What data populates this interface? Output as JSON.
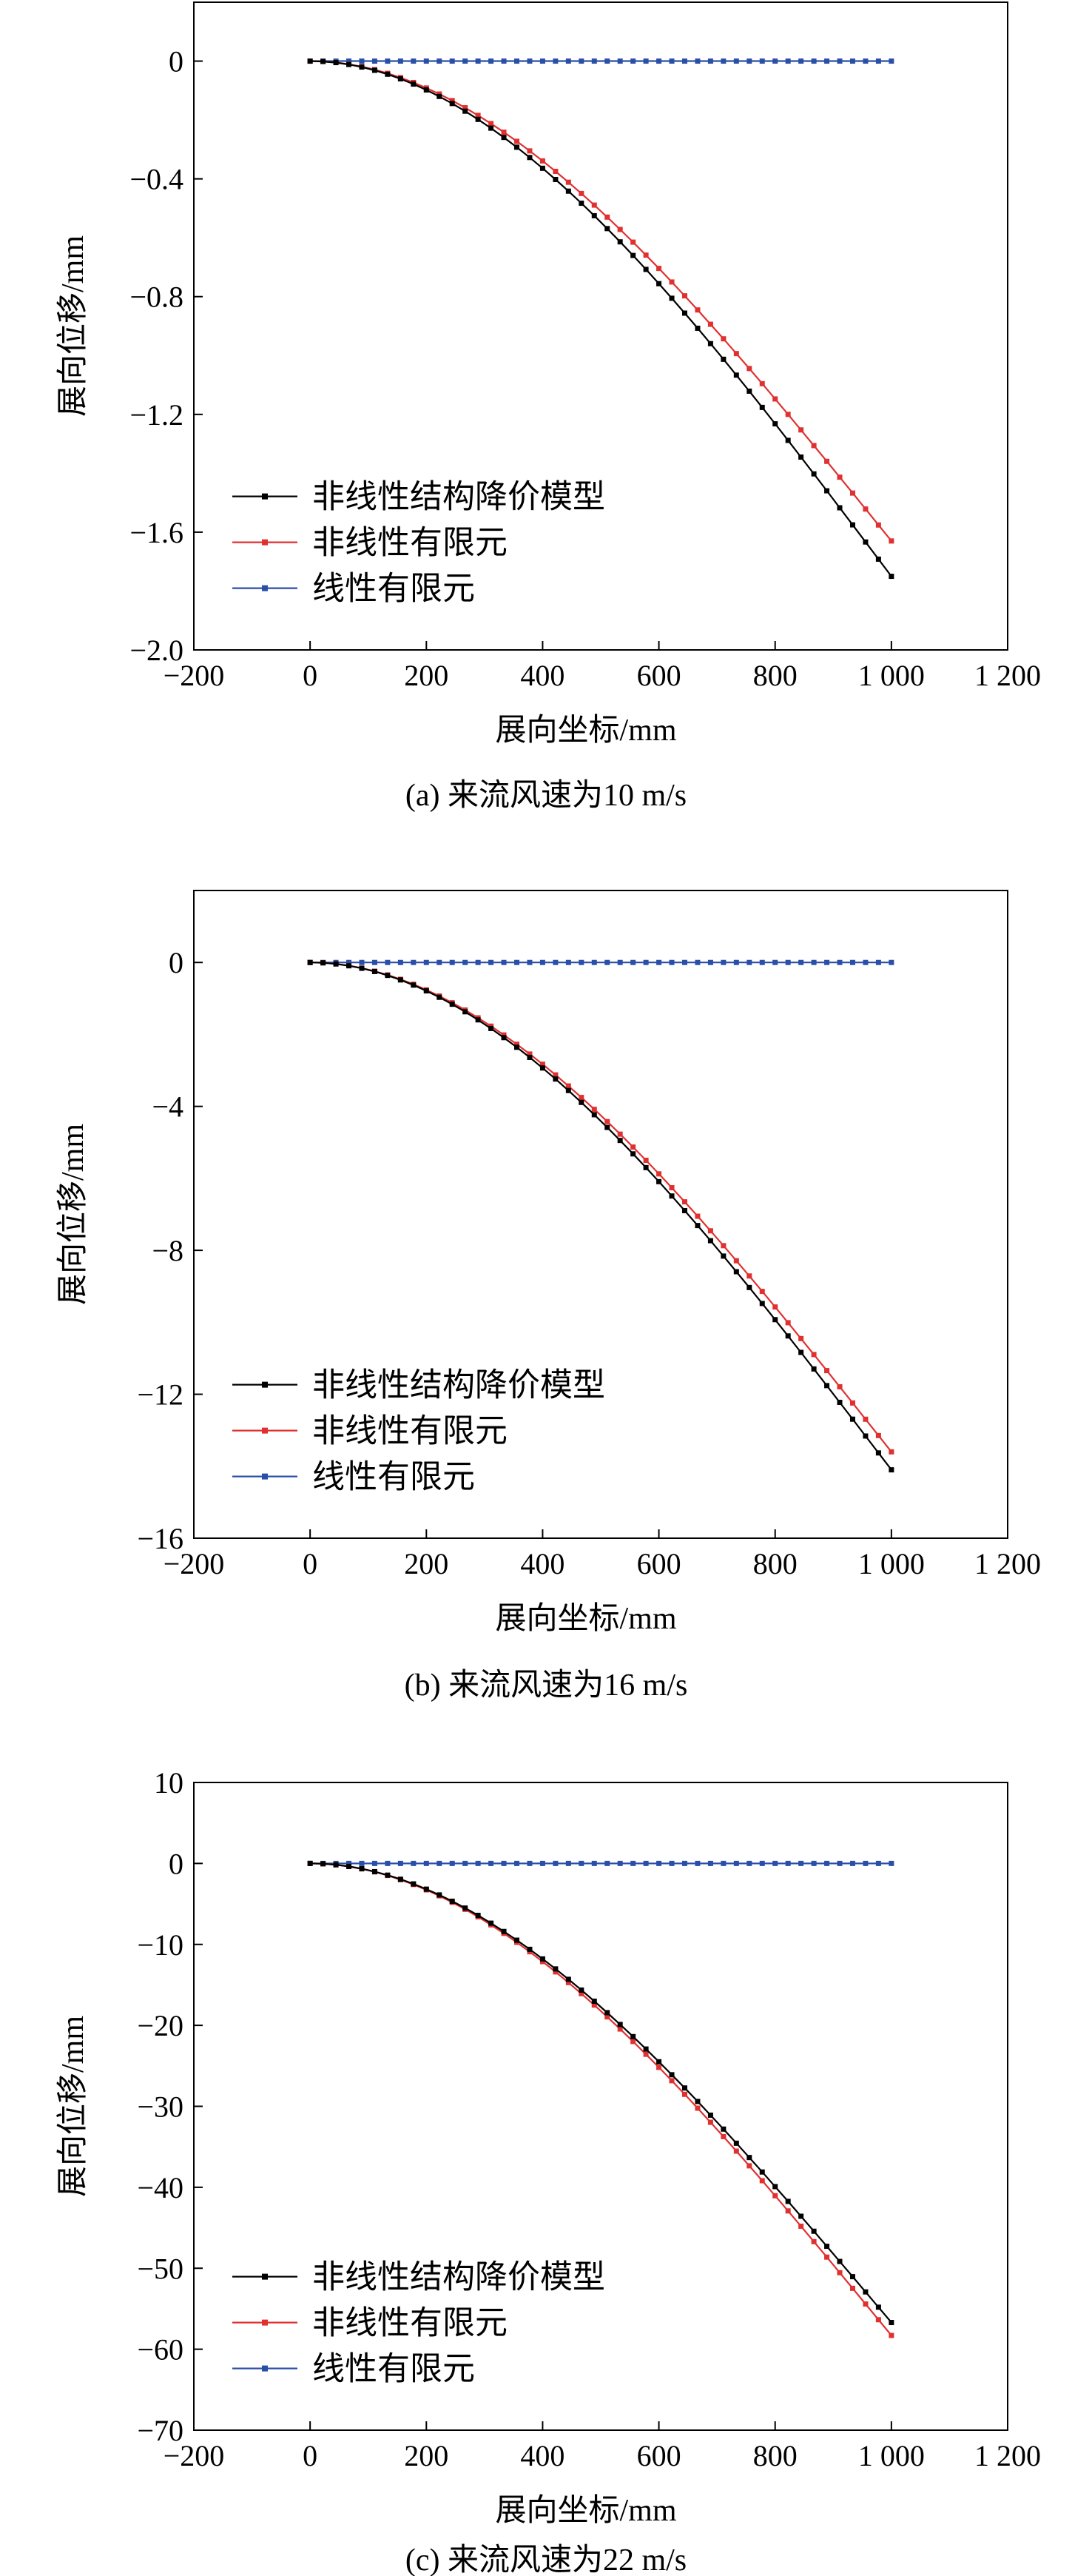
{
  "chart_data": [
    {
      "type": "line",
      "caption": "(a) 来流风速为10 m/s",
      "xlabel": "展向坐标/mm",
      "ylabel": "展向位移/mm",
      "xlim": [
        -200,
        1200
      ],
      "ylim": [
        -2.0,
        0.2
      ],
      "xticks": [
        -200,
        0,
        200,
        400,
        600,
        800,
        1000,
        1200
      ],
      "xtick_labels": [
        "−200",
        "0",
        "200",
        "400",
        "600",
        "800",
        "1 000",
        "1 200"
      ],
      "yticks": [
        0,
        -0.4,
        -0.8,
        -1.2,
        -1.6,
        -2.0
      ],
      "ytick_labels": [
        "0",
        "−0.4",
        "−0.8",
        "−1.2",
        "−1.6",
        "−2.0"
      ],
      "legend_position": "lower-left",
      "tip_values": [
        -1.75,
        -1.63,
        0
      ],
      "series": [
        {
          "name": "非线性结构降价模型",
          "color": "#000000"
        },
        {
          "name": "非线性有限元",
          "color": "#e03030"
        },
        {
          "name": "线性有限元",
          "color": "#2a4fa8"
        }
      ]
    },
    {
      "type": "line",
      "caption": "(b) 来流风速为16 m/s",
      "xlabel": "展向坐标/mm",
      "ylabel": "展向位移/mm",
      "xlim": [
        -200,
        1200
      ],
      "ylim": [
        -16,
        2
      ],
      "xticks": [
        -200,
        0,
        200,
        400,
        600,
        800,
        1000,
        1200
      ],
      "xtick_labels": [
        "−200",
        "0",
        "200",
        "400",
        "600",
        "800",
        "1 000",
        "1 200"
      ],
      "yticks": [
        0,
        -4,
        -8,
        -12,
        -16
      ],
      "ytick_labels": [
        "0",
        "−4",
        "−8",
        "−12",
        "−16"
      ],
      "legend_position": "lower-left",
      "tip_values": [
        -14.1,
        -13.6,
        0
      ],
      "series": [
        {
          "name": "非线性结构降价模型",
          "color": "#000000"
        },
        {
          "name": "非线性有限元",
          "color": "#e03030"
        },
        {
          "name": "线性有限元",
          "color": "#2a4fa8"
        }
      ]
    },
    {
      "type": "line",
      "caption": "(c) 来流风速为22 m/s",
      "xlabel": "展向坐标/mm",
      "ylabel": "展向位移/mm",
      "xlim": [
        -200,
        1200
      ],
      "ylim": [
        -70,
        10
      ],
      "xticks": [
        -200,
        0,
        200,
        400,
        600,
        800,
        1000,
        1200
      ],
      "xtick_labels": [
        "−200",
        "0",
        "200",
        "400",
        "600",
        "800",
        "1 000",
        "1 200"
      ],
      "yticks": [
        10,
        0,
        -10,
        -20,
        -30,
        -40,
        -50,
        -60,
        -70
      ],
      "ytick_labels": [
        "10",
        "0",
        "−10",
        "−20",
        "−30",
        "−40",
        "−50",
        "−60",
        "−70"
      ],
      "legend_position": "lower-left",
      "tip_values": [
        -56.7,
        -58.3,
        0
      ],
      "series": [
        {
          "name": "非线性结构降价模型",
          "color": "#000000"
        },
        {
          "name": "非线性有限元",
          "color": "#e03030"
        },
        {
          "name": "线性有限元",
          "color": "#2a4fa8"
        }
      ]
    }
  ]
}
